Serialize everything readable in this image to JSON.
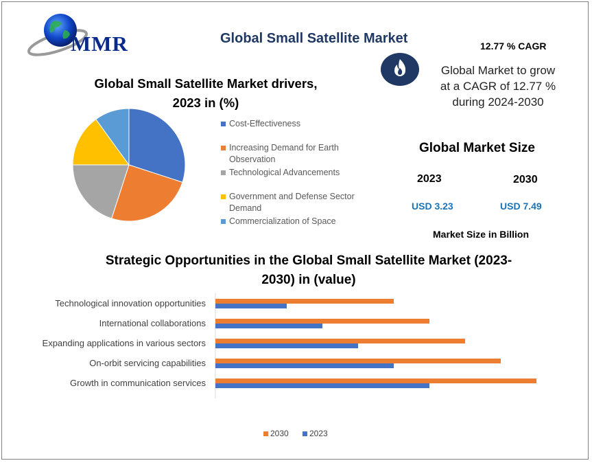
{
  "logo": {
    "text": "MMR"
  },
  "header": {
    "title": "Global Small Satellite Market"
  },
  "cagr": {
    "heading": "12.77 % CAGR",
    "icon": "flame-icon",
    "lines": [
      "Global Market to grow",
      "at a CAGR of 12.77 %",
      "during 2024-2030"
    ]
  },
  "market_size": {
    "title": "Global Market Size",
    "year_a": "2023",
    "year_b": "2030",
    "value_a": "USD 3.23",
    "value_b": "USD 7.49",
    "unit": "Market Size in Billion"
  },
  "colors": {
    "blue": "#4472c4",
    "orange": "#ed7d31",
    "gray": "#a5a5a5",
    "yellow": "#ffc000",
    "lightblue": "#5b9bd5",
    "accent": "#1f3864"
  },
  "chart_data": [
    {
      "type": "pie",
      "title_lines": [
        "Global Small Satellite Market drivers,",
        "2023 in (%)"
      ],
      "categories": [
        "Cost-Effectiveness",
        "Increasing Demand for Earth Observation",
        "Technological Advancements",
        "Government and Defense Sector Demand",
        "Commercialization of Space"
      ],
      "values": [
        30,
        25,
        20,
        15,
        10
      ],
      "colors": [
        "#4472c4",
        "#ed7d31",
        "#a5a5a5",
        "#ffc000",
        "#5b9bd5"
      ],
      "legend_position": "right"
    },
    {
      "type": "bar",
      "orientation": "horizontal",
      "title_lines": [
        "Strategic Opportunities in the Global Small Satellite Market (2023-",
        "2030) in (value)"
      ],
      "categories": [
        "Technological innovation opportunities",
        "International collaborations",
        "Expanding applications in various sectors",
        "On-orbit servicing capabilities",
        "Growth in communication services"
      ],
      "series": [
        {
          "name": "2030",
          "color": "#ed7d31",
          "values": [
            5,
            6,
            7,
            8,
            9
          ]
        },
        {
          "name": "2023",
          "color": "#4472c4",
          "values": [
            2,
            3,
            4,
            5,
            6
          ]
        }
      ],
      "xlim": [
        0,
        9
      ],
      "grid": false,
      "legend_position": "bottom"
    }
  ]
}
